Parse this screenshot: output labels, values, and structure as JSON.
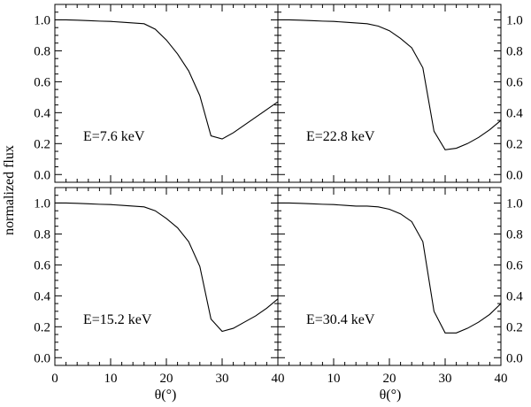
{
  "chart_data": {
    "type": "line",
    "ylabel": "normalized flux",
    "xlabel": "θ(°)",
    "xlim": [
      0,
      40
    ],
    "ylim": [
      -0.05,
      1.1
    ],
    "x_ticks": [
      "0",
      "10",
      "20",
      "30",
      "40"
    ],
    "y_ticks": [
      "0.0",
      "0.2",
      "0.4",
      "0.6",
      "0.8",
      "1.0"
    ],
    "panels": [
      {
        "label": "E=7.6 keV",
        "x": [
          0,
          2,
          4,
          6,
          8,
          10,
          12,
          14,
          16,
          18,
          20,
          22,
          24,
          26,
          28,
          30,
          32,
          34,
          36,
          38,
          40
        ],
        "y": [
          1.0,
          1.0,
          0.998,
          0.995,
          0.992,
          0.99,
          0.985,
          0.98,
          0.975,
          0.94,
          0.87,
          0.78,
          0.67,
          0.51,
          0.25,
          0.23,
          0.27,
          0.32,
          0.37,
          0.42,
          0.47
        ]
      },
      {
        "label": "E=22.8 keV",
        "x": [
          0,
          2,
          4,
          6,
          8,
          10,
          12,
          14,
          16,
          18,
          20,
          22,
          24,
          26,
          28,
          30,
          32,
          34,
          36,
          38,
          40
        ],
        "y": [
          1.0,
          1.0,
          0.998,
          0.995,
          0.992,
          0.99,
          0.985,
          0.98,
          0.975,
          0.96,
          0.93,
          0.88,
          0.82,
          0.69,
          0.28,
          0.16,
          0.17,
          0.2,
          0.24,
          0.29,
          0.35
        ]
      },
      {
        "label": "E=15.2 keV",
        "x": [
          0,
          2,
          4,
          6,
          8,
          10,
          12,
          14,
          16,
          18,
          20,
          22,
          24,
          26,
          28,
          30,
          32,
          34,
          36,
          38,
          40
        ],
        "y": [
          1.0,
          1.0,
          0.998,
          0.995,
          0.992,
          0.99,
          0.985,
          0.98,
          0.975,
          0.95,
          0.9,
          0.84,
          0.75,
          0.59,
          0.25,
          0.17,
          0.19,
          0.23,
          0.27,
          0.32,
          0.38
        ]
      },
      {
        "label": "E=30.4 keV",
        "x": [
          0,
          2,
          4,
          6,
          8,
          10,
          12,
          14,
          16,
          18,
          20,
          22,
          24,
          26,
          28,
          30,
          32,
          34,
          36,
          38,
          40
        ],
        "y": [
          1.0,
          1.0,
          0.998,
          0.995,
          0.992,
          0.99,
          0.985,
          0.98,
          0.98,
          0.975,
          0.96,
          0.93,
          0.88,
          0.75,
          0.3,
          0.16,
          0.16,
          0.19,
          0.23,
          0.28,
          0.35
        ]
      }
    ]
  }
}
